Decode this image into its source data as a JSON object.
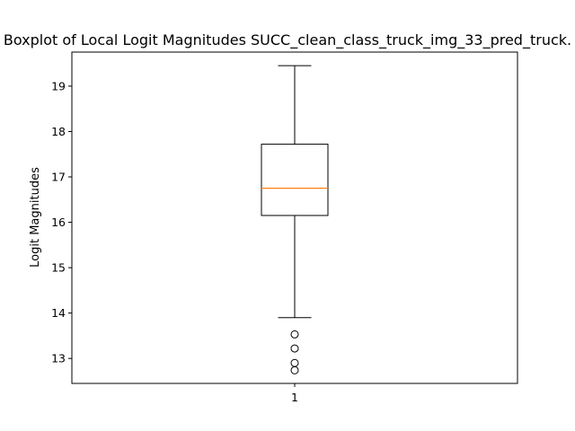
{
  "chart_data": {
    "type": "boxplot",
    "title": "Boxplot of Local Logit Magnitudes SUCC_clean_class_truck_img_33_pred_truck.",
    "xlabel": "",
    "ylabel": "Logit Magnitudes",
    "categories": [
      "1"
    ],
    "ylim": [
      12.45,
      19.75
    ],
    "yticks": [
      13,
      14,
      15,
      16,
      17,
      18,
      19
    ],
    "box": {
      "whisker_low": 13.9,
      "q1": 16.15,
      "median": 16.75,
      "q3": 17.72,
      "whisker_high": 19.45,
      "outliers": [
        13.53,
        13.22,
        12.9,
        12.74
      ]
    },
    "grid": false,
    "colors": {
      "box": "#000000",
      "median": "#ff7f0e",
      "outlier": "#000000"
    }
  }
}
